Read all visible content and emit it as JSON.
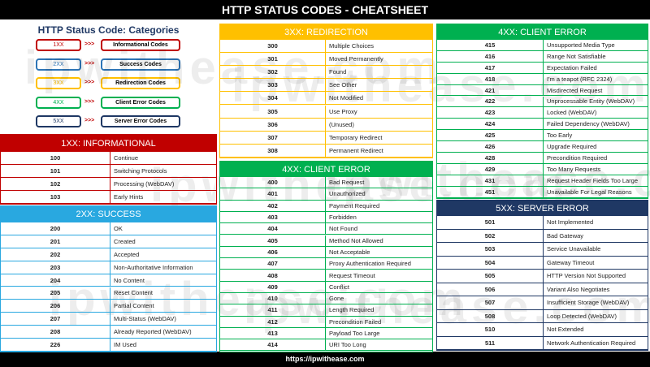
{
  "header": {
    "title": "HTTP STATUS CODES - CHEATSHEET"
  },
  "categories": {
    "title": "HTTP Status Code: Categories",
    "items": [
      {
        "code": "1XX",
        "arrow": ">>>",
        "label": "Informational Codes"
      },
      {
        "code": "2XX",
        "arrow": ">>>",
        "label": "Success Codes"
      },
      {
        "code": "3XX",
        "arrow": ">>>",
        "label": "Redirection Codes"
      },
      {
        "code": "4XX",
        "arrow": ">>>",
        "label": "Client Error Codes"
      },
      {
        "code": "5XX",
        "arrow": ">>>",
        "label": "Server Error Codes"
      }
    ]
  },
  "sections": {
    "informational": {
      "title": "1XX: INFORMATIONAL",
      "rows": [
        [
          "100",
          "Continue"
        ],
        [
          "101",
          "Switching Protocols"
        ],
        [
          "102",
          "Processing (WebDAV)"
        ],
        [
          "103",
          "Early Hints"
        ]
      ]
    },
    "success": {
      "title": "2XX: SUCCESS",
      "rows": [
        [
          "200",
          "OK"
        ],
        [
          "201",
          "Created"
        ],
        [
          "202",
          "Accepted"
        ],
        [
          "203",
          "Non-Authoritative Information"
        ],
        [
          "204",
          "No Content"
        ],
        [
          "205",
          "Reset Content"
        ],
        [
          "206",
          "Partial Content"
        ],
        [
          "207",
          "Multi-Status (WebDAV)"
        ],
        [
          "208",
          "Already Reported (WebDAV)"
        ],
        [
          "226",
          "IM Used"
        ]
      ]
    },
    "redirection": {
      "title": "3XX: REDIRECTION",
      "rows": [
        [
          "300",
          "Multiple Choices"
        ],
        [
          "301",
          "Moved Permanently"
        ],
        [
          "302",
          "Found"
        ],
        [
          "303",
          "See Other"
        ],
        [
          "304",
          "Not Modified"
        ],
        [
          "305",
          "Use Proxy"
        ],
        [
          "306",
          "(Unused)"
        ],
        [
          "307",
          "Temporary Redirect"
        ],
        [
          "308",
          "Permanent Redirect"
        ]
      ]
    },
    "client_error_a": {
      "title": "4XX: CLIENT ERROR",
      "rows": [
        [
          "400",
          "Bad Request"
        ],
        [
          "401",
          "Unauthorized"
        ],
        [
          "402",
          "Payment Required"
        ],
        [
          "403",
          "Forbidden"
        ],
        [
          "404",
          "Not Found"
        ],
        [
          "405",
          "Method Not Allowed"
        ],
        [
          "406",
          "Not Acceptable"
        ],
        [
          "407",
          "Proxy Authentication Required"
        ],
        [
          "408",
          "Request Timeout"
        ],
        [
          "409",
          "Conflict"
        ],
        [
          "410",
          "Gone"
        ],
        [
          "411",
          "Length Required"
        ],
        [
          "412",
          "Precondition Failed"
        ],
        [
          "413",
          "Payload Too Large"
        ],
        [
          "414",
          "URI Too Long"
        ]
      ]
    },
    "client_error_b": {
      "title": "4XX: CLIENT ERROR",
      "rows": [
        [
          "415",
          "Unsupported Media Type"
        ],
        [
          "416",
          "Range Not Satisfiable"
        ],
        [
          "417",
          "Expectation Failed"
        ],
        [
          "418",
          "I'm a teapot (RFC 2324)"
        ],
        [
          "421",
          "Misdirected Request"
        ],
        [
          "422",
          "Unprocessable Entity (WebDAV)"
        ],
        [
          "423",
          "Locked (WebDAV)"
        ],
        [
          "424",
          "Failed Dependency (WebDAV)"
        ],
        [
          "425",
          "Too Early"
        ],
        [
          "426",
          "Upgrade Required"
        ],
        [
          "428",
          "Precondition Required"
        ],
        [
          "429",
          "Too Many Requests"
        ],
        [
          "431",
          "Request Header Fields Too Large"
        ],
        [
          "451",
          "Unavailable For Legal Reasons"
        ]
      ]
    },
    "server_error": {
      "title": "5XX: SERVER ERROR",
      "rows": [
        [
          "501",
          "Not Implemented"
        ],
        [
          "502",
          "Bad Gateway"
        ],
        [
          "503",
          "Service Unavailable"
        ],
        [
          "504",
          "Gateway Timeout"
        ],
        [
          "505",
          "HTTP Version Not Supported"
        ],
        [
          "506",
          "Variant Also Negotiates"
        ],
        [
          "507",
          "Insufficient Storage (WebDAV)"
        ],
        [
          "508",
          "Loop Detected (WebDAV)"
        ],
        [
          "510",
          "Not Extended"
        ],
        [
          "511",
          "Network Authentication Required"
        ]
      ]
    }
  },
  "watermark": "ipwithease.com",
  "footer": {
    "url": "https://ipwithease.com"
  }
}
